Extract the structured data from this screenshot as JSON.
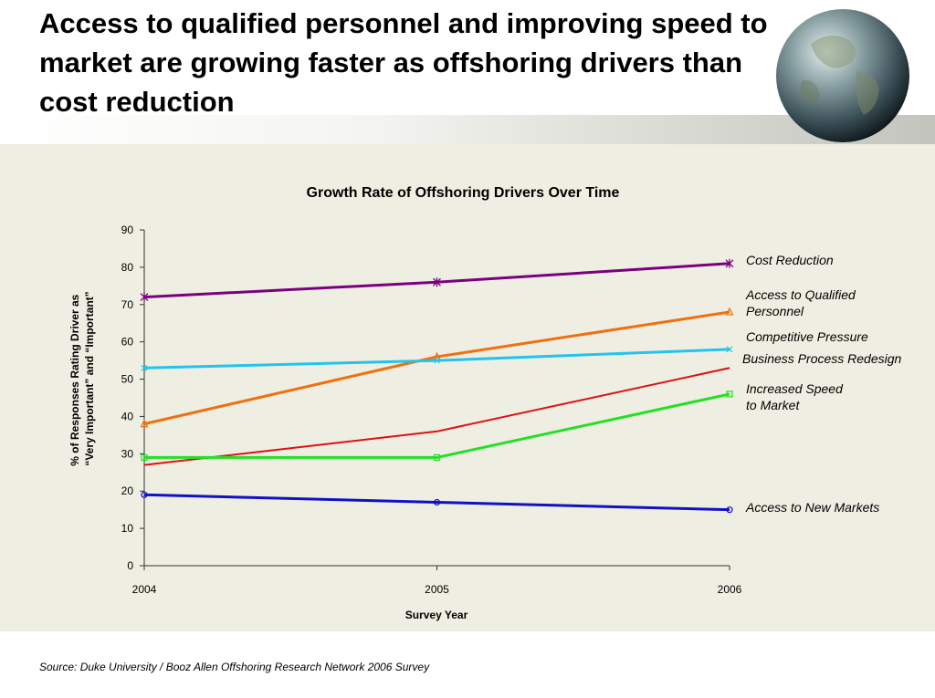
{
  "slide": {
    "title": "Access to qualified personnel and improving speed to market are growing faster as offshoring drivers than cost reduction",
    "source": "Source:  Duke University / Booz Allen Offshoring Research Network 2006 Survey"
  },
  "chart_data": {
    "type": "line",
    "title": "Growth Rate of Offshoring Drivers Over Time",
    "xlabel": "Survey Year",
    "ylabel_lines": [
      "% of Responses Rating Driver as",
      "“Very Important” and “Important”"
    ],
    "x": [
      "2004",
      "2005",
      "2006"
    ],
    "ylim": [
      0,
      90
    ],
    "yticks": [
      0,
      10,
      20,
      30,
      40,
      50,
      60,
      70,
      80,
      90
    ],
    "grid": false,
    "legend": "inline labels at right end of each line",
    "series": [
      {
        "name": "Cost Reduction",
        "label_lines": [
          "Cost Reduction"
        ],
        "values": [
          72,
          76,
          81
        ],
        "color": "#7b0080",
        "marker": "asterisk"
      },
      {
        "name": "Access to Qualified Personnel",
        "label_lines": [
          "Access to Qualified",
          "Personnel"
        ],
        "values": [
          38,
          56,
          68
        ],
        "color": "#f07010",
        "marker": "triangle"
      },
      {
        "name": "Competitive Pressure",
        "label_lines": [
          "Competitive Pressure"
        ],
        "values": [
          53,
          55,
          58
        ],
        "color": "#22c4ee",
        "marker": "x"
      },
      {
        "name": "Business Process Redesign",
        "label_lines": [
          "Business Process Redesign"
        ],
        "values": [
          27,
          36,
          53
        ],
        "color": "#e01010",
        "marker": "none"
      },
      {
        "name": "Increased Speed to Market",
        "label_lines": [
          "Increased Speed",
          "to Market"
        ],
        "values": [
          29,
          29,
          46
        ],
        "color": "#22e022",
        "marker": "square"
      },
      {
        "name": "Access to New Markets",
        "label_lines": [
          "Access to New Markets"
        ],
        "values": [
          19,
          17,
          15
        ],
        "color": "#1010c8",
        "marker": "circle"
      }
    ]
  }
}
